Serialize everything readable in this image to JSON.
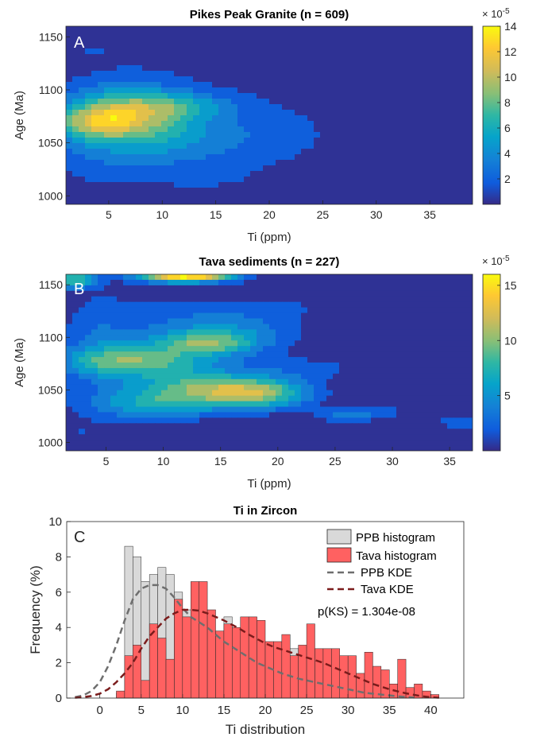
{
  "chart_data": [
    {
      "panel": "A",
      "type": "heatmap",
      "title": "Pikes Peak Granite (n = 609)",
      "xlabel": "Ti (ppm)",
      "ylabel": "Age (Ma)",
      "xlim": [
        1,
        39
      ],
      "ylim": [
        992,
        1160
      ],
      "xticks": [
        5,
        10,
        15,
        20,
        25,
        30,
        35
      ],
      "yticks": [
        1000,
        1050,
        1100,
        1150
      ],
      "colorbar": {
        "label": "×10⁻⁵",
        "min": 0,
        "max": 14,
        "ticks": [
          2,
          4,
          6,
          8,
          10,
          12,
          14
        ]
      },
      "peaks": [
        {
          "x": 6,
          "y": 1082,
          "sx": 4.5,
          "sy": 18,
          "amp": 7
        },
        {
          "x": 4,
          "y": 1070,
          "sx": 2.5,
          "sy": 10,
          "amp": 6
        },
        {
          "x": 9,
          "y": 1080,
          "sx": 3,
          "sy": 12,
          "amp": 3
        },
        {
          "x": 13,
          "y": 1085,
          "sx": 3,
          "sy": 8,
          "amp": 2.5
        },
        {
          "x": 8,
          "y": 1055,
          "sx": 6,
          "sy": 14,
          "amp": 3
        },
        {
          "x": 12,
          "y": 1040,
          "sx": 9,
          "sy": 25,
          "amp": 1.8
        },
        {
          "x": 18,
          "y": 1080,
          "sx": 6,
          "sy": 30,
          "amp": 1.2
        },
        {
          "x": 5,
          "y": 1030,
          "sx": 5,
          "sy": 20,
          "amp": 1.2
        },
        {
          "x": 8,
          "y": 1130,
          "sx": 6,
          "sy": 15,
          "amp": 1.0
        },
        {
          "x": 3,
          "y": 1140,
          "sx": 2,
          "sy": 10,
          "amp": 1.0
        },
        {
          "x": 22,
          "y": 1060,
          "sx": 3,
          "sy": 15,
          "amp": 0.7
        },
        {
          "x": 16,
          "y": 1010,
          "sx": 4,
          "sy": 10,
          "amp": 0.6
        },
        {
          "x": 28,
          "y": 1100,
          "sx": 1,
          "sy": 5,
          "amp": 0.5
        },
        {
          "x": 27,
          "y": 1015,
          "sx": 1,
          "sy": 6,
          "amp": 0.5
        },
        {
          "x": 34,
          "y": 1065,
          "sx": 1,
          "sy": 6,
          "amp": 0.4
        }
      ]
    },
    {
      "panel": "B",
      "type": "heatmap",
      "title": "Tava sediments (n = 227)",
      "xlabel": "Ti (ppm)",
      "ylabel": "Age (Ma)",
      "xlim": [
        1.5,
        37
      ],
      "ylim": [
        992,
        1160
      ],
      "xticks": [
        5,
        10,
        15,
        20,
        25,
        30,
        35
      ],
      "yticks": [
        1000,
        1050,
        1100,
        1150
      ],
      "colorbar": {
        "label": "×10⁻⁵",
        "min": 0,
        "max": 16,
        "ticks": [
          5,
          10,
          15
        ]
      },
      "peaks": [
        {
          "x": 12,
          "y": 1160,
          "sx": 3,
          "sy": 5,
          "amp": 10
        },
        {
          "x": 2,
          "y": 1155,
          "sx": 1.5,
          "sy": 6,
          "amp": 5
        },
        {
          "x": 7,
          "y": 1078,
          "sx": 4,
          "sy": 10,
          "amp": 4
        },
        {
          "x": 14,
          "y": 1095,
          "sx": 3,
          "sy": 8,
          "amp": 4
        },
        {
          "x": 15,
          "y": 1050,
          "sx": 4,
          "sy": 10,
          "amp": 4
        },
        {
          "x": 19,
          "y": 1045,
          "sx": 3,
          "sy": 10,
          "amp": 3.5
        },
        {
          "x": 9,
          "y": 1035,
          "sx": 4,
          "sy": 10,
          "amp": 3
        },
        {
          "x": 11,
          "y": 1060,
          "sx": 6,
          "sy": 20,
          "amp": 2.2
        },
        {
          "x": 10,
          "y": 1110,
          "sx": 5,
          "sy": 25,
          "amp": 1.5
        },
        {
          "x": 17,
          "y": 1110,
          "sx": 4,
          "sy": 15,
          "amp": 1.8
        },
        {
          "x": 4,
          "y": 1100,
          "sx": 2,
          "sy": 30,
          "amp": 1.2
        },
        {
          "x": 26,
          "y": 1025,
          "sx": 2,
          "sy": 5,
          "amp": 2
        },
        {
          "x": 29,
          "y": 1030,
          "sx": 2,
          "sy": 5,
          "amp": 1.2
        },
        {
          "x": 36,
          "y": 1020,
          "sx": 1.5,
          "sy": 5,
          "amp": 2
        },
        {
          "x": 23,
          "y": 1070,
          "sx": 3,
          "sy": 8,
          "amp": 1.2
        },
        {
          "x": 26,
          "y": 1100,
          "sx": 2,
          "sy": 6,
          "amp": 0.8
        },
        {
          "x": 32,
          "y": 1080,
          "sx": 1.5,
          "sy": 5,
          "amp": 0.8
        },
        {
          "x": 35,
          "y": 1090,
          "sx": 1.5,
          "sy": 5,
          "amp": 0.8
        },
        {
          "x": 3,
          "y": 1010,
          "sx": 1.5,
          "sy": 8,
          "amp": 0.9
        },
        {
          "x": 21,
          "y": 1130,
          "sx": 2,
          "sy": 8,
          "amp": 0.8
        }
      ]
    },
    {
      "panel": "C",
      "type": "bar",
      "title": "Ti in Zircon",
      "xlabel": "Ti distribution",
      "ylabel": "Frequency (%)",
      "xlim": [
        -4,
        44
      ],
      "ylim": [
        0,
        10
      ],
      "xticks": [
        0,
        5,
        10,
        15,
        20,
        25,
        30,
        35,
        40
      ],
      "yticks": [
        0,
        2,
        4,
        6,
        8,
        10
      ],
      "bin_width": 1,
      "bins_start": [
        1,
        2,
        3,
        4,
        5,
        6,
        7,
        8,
        9,
        10,
        11,
        12,
        13,
        14,
        15,
        16,
        17,
        18,
        19,
        20,
        21,
        22,
        23,
        24,
        25,
        26,
        27,
        28,
        29,
        30,
        31,
        32,
        33,
        34,
        35,
        36,
        37,
        38,
        39,
        40
      ],
      "series": [
        {
          "name": "PPB histogram",
          "color": "#d9d9d9",
          "values": [
            0,
            0.3,
            8.6,
            8.0,
            6.6,
            7.0,
            7.4,
            7.0,
            6.0,
            5.0,
            4.2,
            4.2,
            3.0,
            3.2,
            4.6,
            3.6,
            3.0,
            3.6,
            3.2,
            1.8,
            2.4,
            1.6,
            2.8,
            1.2,
            1.0,
            1.4,
            1.1,
            1.0,
            0.8,
            0.9,
            0.7,
            0.8,
            0.6,
            0.5,
            0.6,
            0.3,
            0.4,
            0.2,
            0,
            0
          ]
        },
        {
          "name": "Tava histogram",
          "color": "#ff6161",
          "values": [
            0,
            0.4,
            2.4,
            3.0,
            1.0,
            4.2,
            3.4,
            2.2,
            5.6,
            4.6,
            6.6,
            6.6,
            5.0,
            3.8,
            4.2,
            4.0,
            4.6,
            4.6,
            4.4,
            3.2,
            3.2,
            3.6,
            2.4,
            3.0,
            4.2,
            2.8,
            2.8,
            2.8,
            2.4,
            2.4,
            1.4,
            2.6,
            1.8,
            1.6,
            0.8,
            2.2,
            0.6,
            0.8,
            0.4,
            0.2
          ]
        }
      ],
      "kde": [
        {
          "name": "PPB KDE",
          "color": "#6e6e6e",
          "x": [
            -3,
            -2,
            -1,
            0,
            1,
            2,
            3,
            4,
            5,
            6,
            7,
            8,
            9,
            10,
            11,
            12,
            13,
            14,
            15,
            16,
            17,
            18,
            19,
            20,
            21,
            22,
            23,
            24,
            25,
            26,
            27,
            28,
            29,
            30,
            31,
            32,
            33,
            34,
            35,
            36,
            37,
            38
          ],
          "y": [
            0.05,
            0.15,
            0.4,
            0.9,
            1.8,
            3.0,
            4.4,
            5.6,
            6.2,
            6.4,
            6.4,
            6.2,
            5.7,
            5.1,
            4.6,
            4.3,
            4.0,
            3.6,
            3.2,
            2.9,
            2.6,
            2.3,
            2.0,
            1.8,
            1.6,
            1.4,
            1.25,
            1.1,
            1.0,
            0.9,
            0.8,
            0.7,
            0.6,
            0.5,
            0.4,
            0.3,
            0.25,
            0.2,
            0.15,
            0.1,
            0.06,
            0.03
          ]
        },
        {
          "name": "Tava KDE",
          "color": "#7b1c1c",
          "x": [
            -3,
            -2,
            -1,
            0,
            1,
            2,
            3,
            4,
            5,
            6,
            7,
            8,
            9,
            10,
            11,
            12,
            13,
            14,
            15,
            16,
            17,
            18,
            19,
            20,
            21,
            22,
            23,
            24,
            25,
            26,
            27,
            28,
            29,
            30,
            31,
            32,
            33,
            34,
            35,
            36,
            37,
            38,
            39,
            40,
            41
          ],
          "y": [
            0.02,
            0.05,
            0.12,
            0.25,
            0.5,
            0.9,
            1.4,
            2.0,
            2.8,
            3.5,
            4.0,
            4.5,
            4.8,
            5.0,
            5.0,
            4.95,
            4.8,
            4.6,
            4.4,
            4.15,
            3.9,
            3.6,
            3.35,
            3.1,
            2.9,
            2.75,
            2.6,
            2.45,
            2.3,
            2.15,
            2.0,
            1.8,
            1.6,
            1.4,
            1.2,
            1.0,
            0.8,
            0.65,
            0.5,
            0.38,
            0.27,
            0.18,
            0.1,
            0.05,
            0.02
          ]
        }
      ],
      "annotation": "p(KS) = 1.304e-08",
      "legend_position": "top-right"
    }
  ],
  "panel_labels": [
    "A",
    "B",
    "C"
  ],
  "colorbar_exponent": "× 10",
  "colorbar_exponent_power": "-5"
}
